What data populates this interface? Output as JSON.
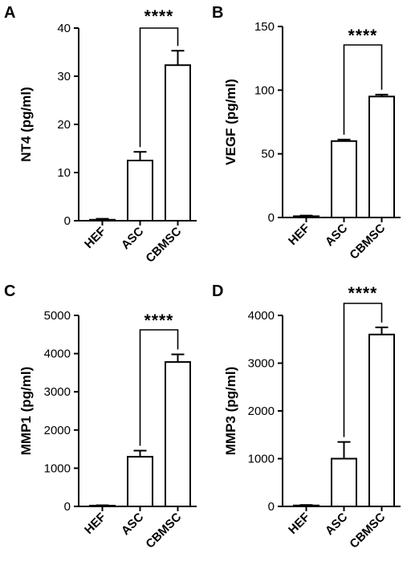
{
  "chart_data": [
    {
      "panel": "A",
      "type": "bar",
      "categories": [
        "HEF",
        "ASC",
        "CBMSC"
      ],
      "values": [
        0.2,
        12.5,
        32.3
      ],
      "errors": [
        0.2,
        1.8,
        3.0
      ],
      "ylabel": "NT4 (pg/ml)",
      "ylim": [
        0,
        40
      ],
      "yticks": [
        0,
        10,
        20,
        30,
        40
      ],
      "significance": {
        "from": "ASC",
        "to": "CBMSC",
        "label": "****"
      }
    },
    {
      "panel": "B",
      "type": "bar",
      "categories": [
        "HEF",
        "ASC",
        "CBMSC"
      ],
      "values": [
        1,
        60,
        95
      ],
      "errors": [
        0.5,
        1.2,
        1.5
      ],
      "ylabel": "VEGF (pg/ml)",
      "ylim": [
        0,
        150
      ],
      "yticks": [
        0,
        50,
        100,
        150
      ],
      "significance": {
        "from": "ASC",
        "to": "CBMSC",
        "label": "****"
      }
    },
    {
      "panel": "C",
      "type": "bar",
      "categories": [
        "HEF",
        "ASC",
        "CBMSC"
      ],
      "values": [
        20,
        1300,
        3780
      ],
      "errors": [
        10,
        160,
        200
      ],
      "ylabel": "MMP1 (pg/ml)",
      "ylim": [
        0,
        5000
      ],
      "yticks": [
        0,
        1000,
        2000,
        3000,
        4000,
        5000
      ],
      "significance": {
        "from": "ASC",
        "to": "CBMSC",
        "label": "****"
      }
    },
    {
      "panel": "D",
      "type": "bar",
      "categories": [
        "HEF",
        "ASC",
        "CBMSC"
      ],
      "values": [
        20,
        1000,
        3600
      ],
      "errors": [
        10,
        350,
        150
      ],
      "ylabel": "MMP3 (pg/ml)",
      "ylim": [
        0,
        4000
      ],
      "yticks": [
        0,
        1000,
        2000,
        3000,
        4000
      ],
      "significance": {
        "from": "ASC",
        "to": "CBMSC",
        "label": "****"
      }
    }
  ]
}
